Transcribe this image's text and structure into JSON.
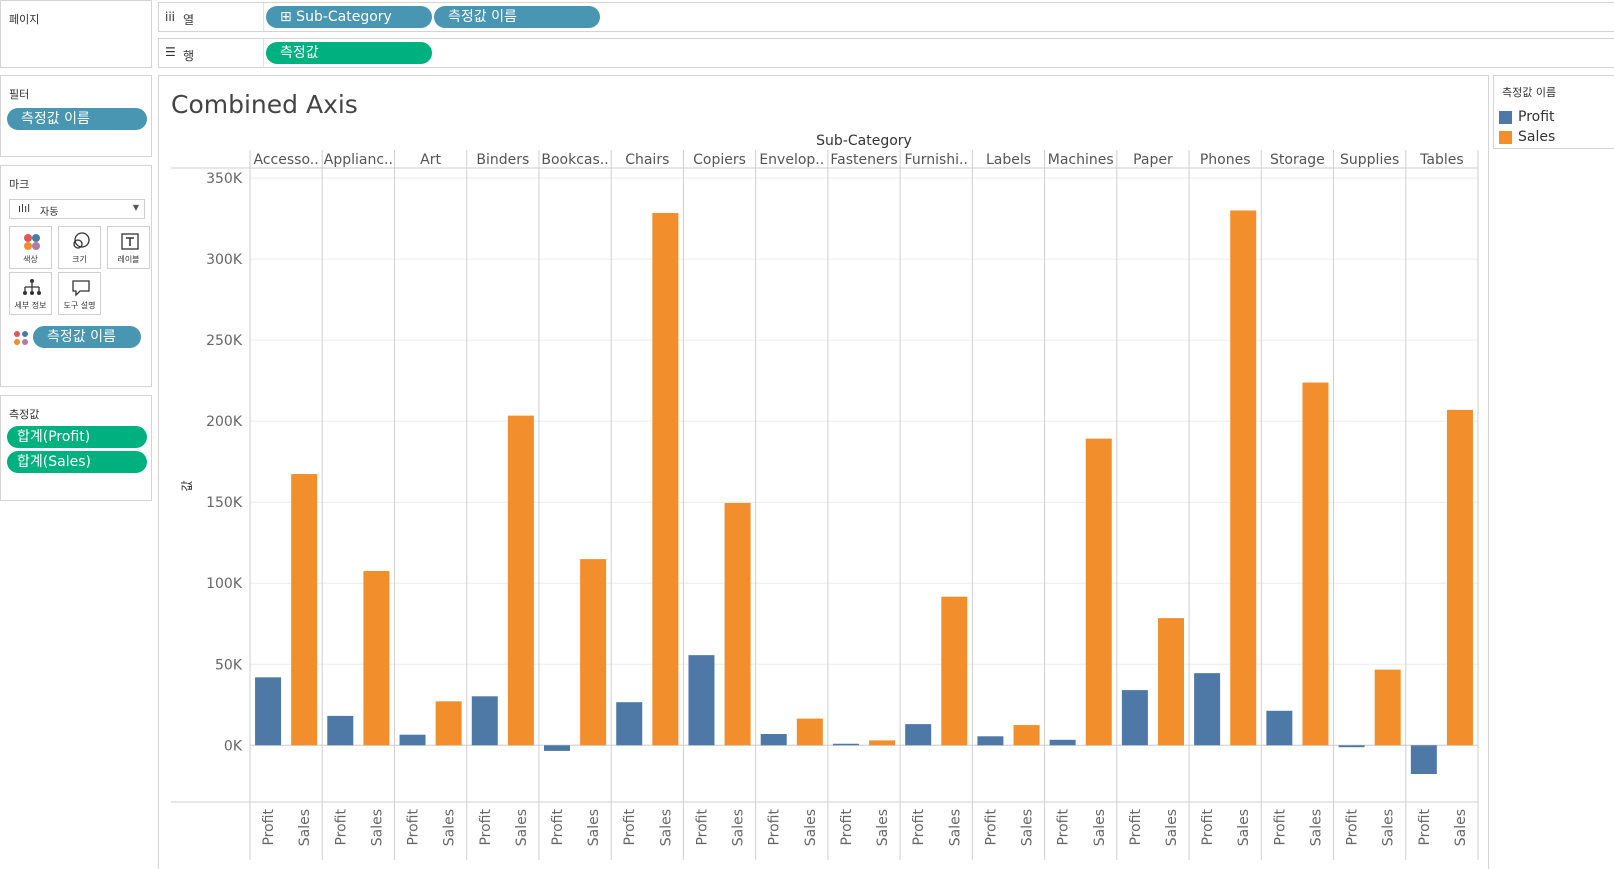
{
  "shelves": {
    "pages_label": "페이지",
    "columns_label": "열",
    "rows_label": "행",
    "columns_pills": [
      "⊞ Sub-Category",
      "측정값 이름"
    ],
    "rows_pills": [
      "측정값"
    ]
  },
  "filters": {
    "title": "필터",
    "pills": [
      "측정값 이름"
    ]
  },
  "marks": {
    "title": "마크",
    "mark_type": "자동",
    "buttons": [
      "색상",
      "크기",
      "레이블",
      "세부 정보",
      "도구 설명"
    ],
    "color_pill": "측정값 이름"
  },
  "measure_values": {
    "title": "측정값",
    "pills": [
      "합계(Profit)",
      "합계(Sales)"
    ]
  },
  "legend": {
    "title": "측정값 이름",
    "items": [
      {
        "label": "Profit",
        "color": "#4e79a7"
      },
      {
        "label": "Sales",
        "color": "#f28e2b"
      }
    ]
  },
  "view": {
    "title": "Combined Axis",
    "column_header": "Sub-Category",
    "y_axis_label": "값"
  },
  "chart_data": {
    "type": "bar",
    "title": "Combined Axis",
    "xlabel": "Sub-Category",
    "ylabel": "값",
    "categories": [
      "Accesso..",
      "Applianc..",
      "Art",
      "Binders",
      "Bookcas..",
      "Chairs",
      "Copiers",
      "Envelop..",
      "Fasteners",
      "Furnishi..",
      "Labels",
      "Machines",
      "Paper",
      "Phones",
      "Storage",
      "Supplies",
      "Tables"
    ],
    "inner_labels": [
      "Profit",
      "Sales"
    ],
    "series": [
      {
        "name": "Profit",
        "color": "#4e79a7",
        "values": [
          41937,
          18138,
          6528,
          30222,
          -3473,
          26590,
          55618,
          6964,
          950,
          13059,
          5546,
          3385,
          34054,
          44516,
          21279,
          -1189,
          -17725
        ]
      },
      {
        "name": "Sales",
        "color": "#f28e2b",
        "values": [
          167380,
          107532,
          27119,
          203413,
          114880,
          328449,
          149528,
          16476,
          3024,
          91705,
          12486,
          189239,
          78479,
          330007,
          223844,
          46674,
          206966
        ]
      }
    ],
    "ylim": [
      -35000,
      355000
    ],
    "yticks": [
      0,
      50000,
      100000,
      150000,
      200000,
      250000,
      300000,
      350000
    ],
    "ytick_labels": [
      "0K",
      "50K",
      "100K",
      "150K",
      "200K",
      "250K",
      "300K",
      "350K"
    ],
    "grid": true,
    "legend_position": "right"
  }
}
